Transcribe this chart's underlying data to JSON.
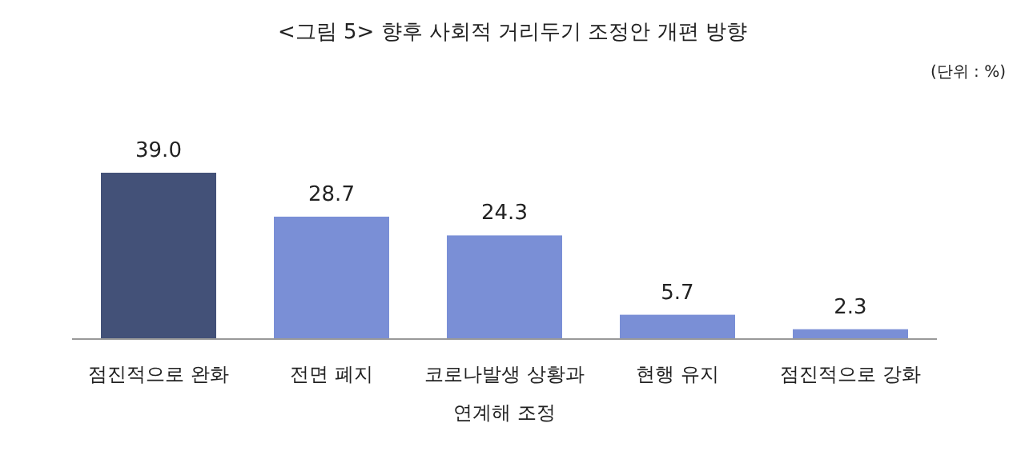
{
  "chart_data": {
    "type": "bar",
    "title": "<그림 5> 향후 사회적 거리두기 조정안 개편 방향",
    "annotations": [
      "(단위 : %)"
    ],
    "categories": [
      "점진적으로 완화",
      "전면 폐지",
      "코로나발생 상황과 연계해 조정",
      "현행 유지",
      "점진적으로 강화"
    ],
    "values": [
      39.0,
      28.7,
      24.3,
      5.7,
      2.3
    ],
    "value_labels": [
      "39.0",
      "28.7",
      "24.3",
      "5.7",
      "2.3"
    ],
    "colors": [
      "#435178",
      "#7a8fd6",
      "#7a8fd6",
      "#7a8fd6",
      "#7a8fd6"
    ]
  }
}
